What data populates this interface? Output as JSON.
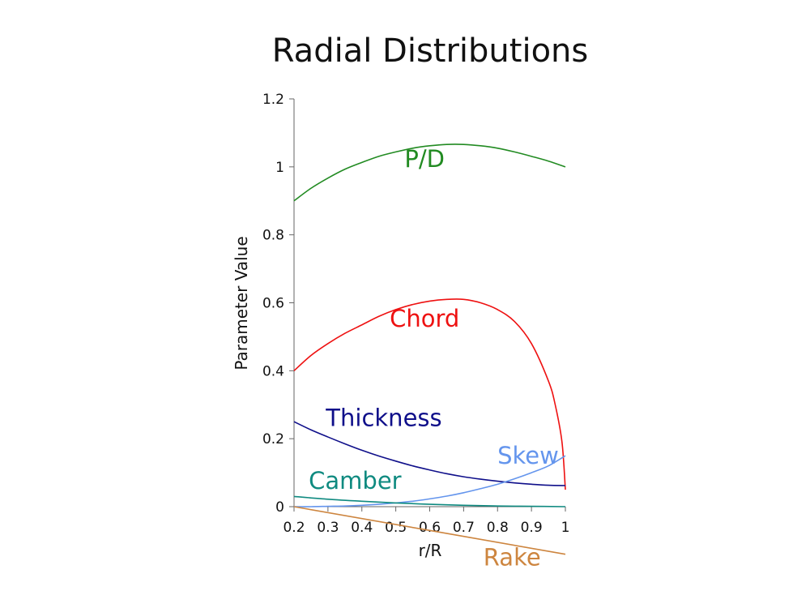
{
  "chart_data": {
    "type": "line",
    "title": "Radial Distributions",
    "xlabel": "r/R",
    "ylabel": "Parameter Value",
    "xlim": [
      0.2,
      1.0
    ],
    "ylim": [
      0,
      1.2
    ],
    "xticks": [
      "0.2",
      "0.3",
      "0.4",
      "0.5",
      "0.6",
      "0.7",
      "0.8",
      "0.9",
      "1"
    ],
    "yticks": [
      "0",
      "0.2",
      "0.4",
      "0.6",
      "0.8",
      "1",
      "1.2"
    ],
    "grid": false,
    "legend": "inline labels",
    "series": [
      {
        "name": "P/D",
        "color": "#228b22",
        "x": [
          0.2,
          0.25,
          0.3,
          0.35,
          0.4,
          0.45,
          0.5,
          0.55,
          0.6,
          0.65,
          0.7,
          0.75,
          0.8,
          0.85,
          0.9,
          0.95,
          1.0
        ],
        "y": [
          0.9,
          0.937,
          0.967,
          0.993,
          1.013,
          1.031,
          1.044,
          1.055,
          1.062,
          1.066,
          1.066,
          1.062,
          1.055,
          1.044,
          1.031,
          1.017,
          1.0
        ]
      },
      {
        "name": "Chord",
        "color": "#ee1111",
        "x": [
          0.2,
          0.25,
          0.3,
          0.35,
          0.4,
          0.45,
          0.5,
          0.55,
          0.6,
          0.65,
          0.7,
          0.75,
          0.8,
          0.85,
          0.9,
          0.95,
          0.97,
          0.99,
          1.0
        ],
        "y": [
          0.4,
          0.445,
          0.48,
          0.51,
          0.535,
          0.56,
          0.58,
          0.595,
          0.605,
          0.61,
          0.61,
          0.6,
          0.58,
          0.545,
          0.48,
          0.37,
          0.3,
          0.19,
          0.05
        ]
      },
      {
        "name": "Thickness",
        "color": "#0f0f8a",
        "x": [
          0.2,
          0.25,
          0.3,
          0.35,
          0.4,
          0.45,
          0.5,
          0.55,
          0.6,
          0.65,
          0.7,
          0.75,
          0.8,
          0.85,
          0.9,
          0.95,
          1.0
        ],
        "y": [
          0.25,
          0.226,
          0.205,
          0.185,
          0.166,
          0.149,
          0.134,
          0.12,
          0.108,
          0.097,
          0.088,
          0.081,
          0.075,
          0.07,
          0.066,
          0.063,
          0.062
        ]
      },
      {
        "name": "Skew",
        "color": "#6495ed",
        "x": [
          0.2,
          0.25,
          0.3,
          0.35,
          0.4,
          0.45,
          0.5,
          0.55,
          0.6,
          0.65,
          0.7,
          0.75,
          0.8,
          0.85,
          0.9,
          0.95,
          1.0
        ],
        "y": [
          0.0,
          0.0,
          0.001,
          0.002,
          0.004,
          0.007,
          0.011,
          0.016,
          0.023,
          0.031,
          0.041,
          0.053,
          0.066,
          0.082,
          0.1,
          0.12,
          0.15
        ]
      },
      {
        "name": "Camber",
        "color": "#0f8a80",
        "x": [
          0.2,
          0.3,
          0.4,
          0.5,
          0.6,
          0.7,
          0.8,
          0.9,
          1.0
        ],
        "y": [
          0.03,
          0.022,
          0.016,
          0.011,
          0.007,
          0.004,
          0.002,
          0.001,
          0.0
        ]
      },
      {
        "name": "Rake",
        "color": "#cd853f",
        "x": [
          0.2,
          1.0
        ],
        "y": [
          0.0,
          -0.14
        ]
      }
    ]
  }
}
